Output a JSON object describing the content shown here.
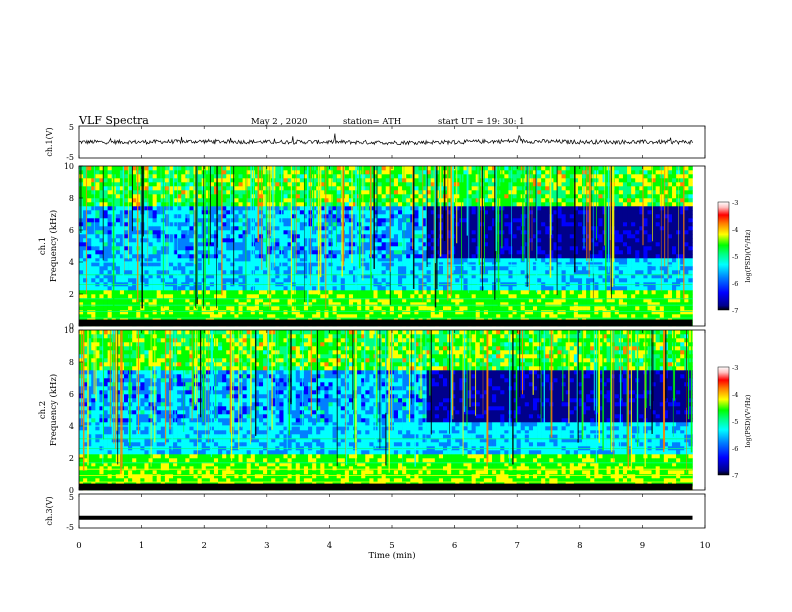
{
  "header": {
    "title": "VLF  Spectra",
    "date": "May 2  , 2020",
    "station": "station= ATH",
    "start": "start  UT  =    19: 30: 1"
  },
  "colors": {
    "colormap": [
      "#000000",
      "#00008b",
      "#0000ff",
      "#0080ff",
      "#00ffff",
      "#00ff80",
      "#00ff00",
      "#ffff00",
      "#ff8000",
      "#ff0000",
      "#ffc0c0",
      "#ffffff"
    ]
  },
  "chart_data": [
    {
      "type": "line",
      "name": "ch1-waveform",
      "ylabel": "ch.1(V)",
      "ylim": [
        -5,
        5
      ],
      "yticks": [
        "5",
        "-5"
      ],
      "x": [
        0,
        1,
        2,
        3,
        4,
        5,
        6,
        7,
        8,
        9,
        9.8
      ],
      "y": [
        0,
        0,
        0.2,
        0,
        0,
        -0.2,
        0,
        0.3,
        0,
        0,
        0
      ],
      "grid": false
    },
    {
      "type": "heatmap",
      "name": "ch1-spectrogram",
      "ylabel": "ch.1 Frequency  (kHz)",
      "ylim": [
        0,
        10
      ],
      "xlim": [
        0,
        9.8
      ],
      "yticks": [
        "0",
        "2",
        "4",
        "6",
        "8",
        "10"
      ],
      "colorbar": {
        "label": "log(PSD)(V²/Hz)",
        "range": [
          -7,
          -3
        ],
        "ticks": [
          "-3",
          "-4",
          "-5",
          "-6",
          "-7"
        ]
      },
      "features": {
        "step_time_min": 5.55,
        "band_4khz_before_step": 4.0,
        "band_4khz_after_step": 3.8
      }
    },
    {
      "type": "heatmap",
      "name": "ch2-spectrogram",
      "ylabel": "ch.2 Frequency  (kHz)",
      "ylim": [
        0,
        10
      ],
      "xlim": [
        0,
        9.8
      ],
      "yticks": [
        "0",
        "2",
        "4",
        "6",
        "8",
        "10"
      ],
      "colorbar": {
        "label": "log(PSD)(V²/Hz)",
        "range": [
          -7,
          -3
        ],
        "ticks": [
          "-3",
          "-4",
          "-5",
          "-6",
          "-7"
        ]
      },
      "features": {
        "step_time_min": 5.55,
        "band_4khz_before_step": 4.0,
        "band_4khz_after_step": 3.5
      }
    },
    {
      "type": "line",
      "name": "ch3-waveform",
      "ylabel": "ch.3(V)",
      "ylim": [
        -5,
        5
      ],
      "yticks": [
        "5",
        "-5"
      ],
      "x": [
        0,
        9.8
      ],
      "y": [
        -2,
        -2
      ],
      "grid": false
    }
  ],
  "xaxis": {
    "label": "Time  (min)",
    "range": [
      0,
      10
    ],
    "ticks": [
      "0",
      "1",
      "2",
      "3",
      "4",
      "5",
      "6",
      "7",
      "8",
      "9",
      "10"
    ]
  }
}
